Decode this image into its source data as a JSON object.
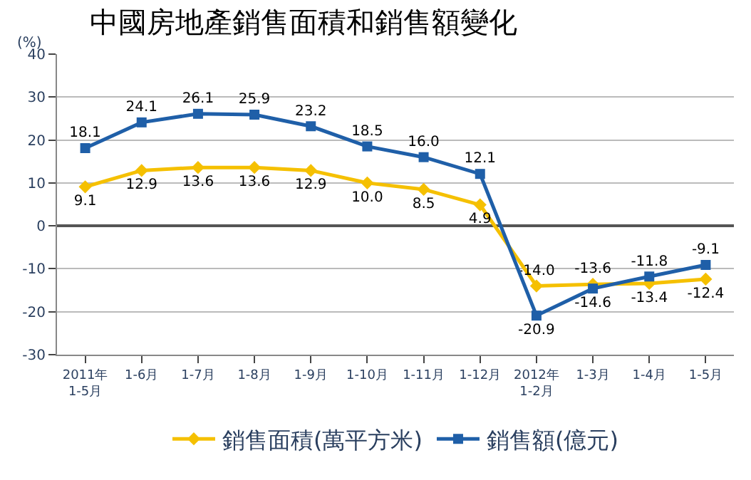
{
  "chart_data": {
    "type": "line",
    "title": "中國房地產銷售面積和銷售額變化",
    "ylabel": "(%)",
    "categories": [
      "2011年\n1-5月",
      "1-6月",
      "1-7月",
      "1-8月",
      "1-9月",
      "1-10月",
      "1-11月",
      "1-12月",
      "2012年\n1-2月",
      "1-3月",
      "1-4月",
      "1-5月"
    ],
    "series": [
      {
        "name": "銷售面積(萬平方米)",
        "color": "#f5c000",
        "marker": "diamond",
        "values": [
          9.1,
          12.9,
          13.6,
          13.6,
          12.9,
          10.0,
          8.5,
          4.9,
          -14.0,
          -13.6,
          -13.4,
          -12.4
        ],
        "value_labels": [
          "9.1",
          "12.9",
          "13.6",
          "13.6",
          "12.9",
          "10.0",
          "8.5",
          "4.9",
          "-14.0",
          "-13.6",
          "-13.4",
          "-12.4"
        ]
      },
      {
        "name": "銷售額(億元)",
        "color": "#1f5fa8",
        "marker": "square",
        "values": [
          18.1,
          24.1,
          26.1,
          25.9,
          23.2,
          18.5,
          16.0,
          12.1,
          -20.9,
          -14.6,
          -11.8,
          -9.1
        ],
        "value_labels": [
          "18.1",
          "24.1",
          "26.1",
          "25.9",
          "23.2",
          "18.5",
          "16.0",
          "12.1",
          "-20.9",
          "-14.6",
          "-11.8",
          "-9.1"
        ]
      }
    ],
    "ylim": [
      -30,
      40
    ],
    "yticks": [
      -30,
      -20,
      -10,
      0,
      10,
      20,
      30,
      40
    ],
    "grid": "y",
    "legend": "bottom",
    "line_style": "solid"
  }
}
